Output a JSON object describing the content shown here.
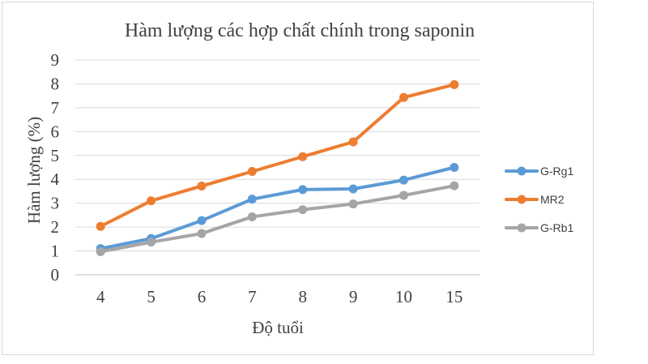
{
  "chart_data": {
    "type": "line",
    "title": "Hàm lượng các hợp chất chính trong saponin",
    "xlabel": "Độ tuổi",
    "ylabel": "Hàm lượng (%)",
    "categories": [
      "4",
      "5",
      "6",
      "7",
      "8",
      "9",
      "10",
      "15"
    ],
    "ylim": [
      0,
      9
    ],
    "yticks": [
      "0",
      "1",
      "2",
      "3",
      "4",
      "5",
      "6",
      "7",
      "8",
      "9"
    ],
    "grid": true,
    "legend_position": "right",
    "series": [
      {
        "name": "G-Rg1",
        "color": "#5b9bd5",
        "values": [
          1.1,
          1.52,
          2.27,
          3.17,
          3.57,
          3.6,
          3.97,
          4.5
        ]
      },
      {
        "name": "MR2",
        "color": "#ed7d31",
        "values": [
          2.03,
          3.1,
          3.72,
          4.33,
          4.95,
          5.57,
          7.43,
          7.97
        ]
      },
      {
        "name": "G-Rb1",
        "color": "#a5a5a5",
        "values": [
          0.97,
          1.37,
          1.73,
          2.43,
          2.73,
          2.97,
          3.33,
          3.73
        ]
      }
    ]
  }
}
